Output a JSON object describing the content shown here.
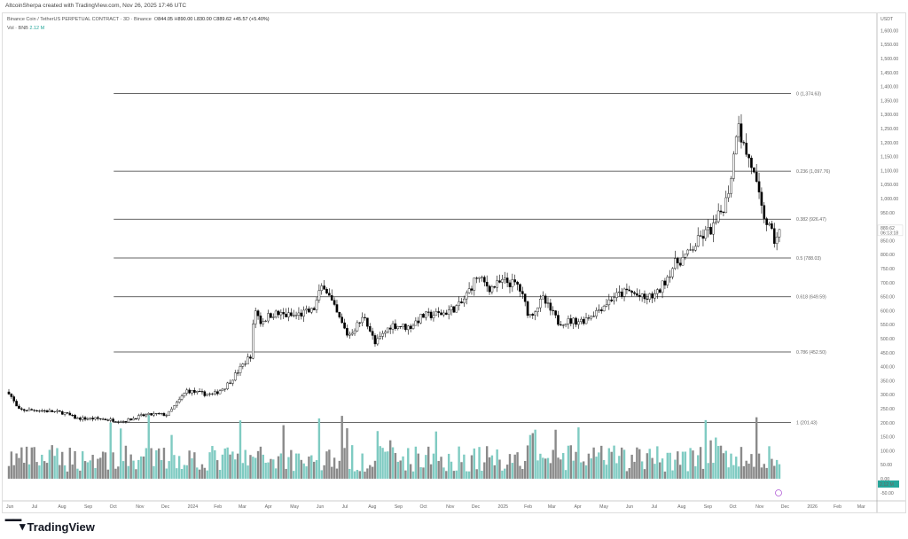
{
  "credit": "AltcoinSherpa created with TradingView.com, Nov 26, 2025 17:46 UTC",
  "legend": {
    "symbol": "Binance Coin / TetherUS PERPETUAL CONTRACT · 3D · Binance",
    "open_label": "O",
    "open": "844.05",
    "high_label": "H",
    "high": "890.00",
    "low_label": "L",
    "low": "830.00",
    "close_label": "C",
    "close": "889.62",
    "change": "+45.57 (+5.40%)",
    "vol_label": "Vol · BNB",
    "vol_value": "2.12 M"
  },
  "logo": "TradingView",
  "colors": {
    "up_body": "#ffffff",
    "down_body": "#000000",
    "vol_up": "#7fcbc2",
    "vol_down": "#8a8a8a",
    "accent": "#26a69a",
    "fib_line": "#333333"
  },
  "chart_data": {
    "type": "candlestick",
    "timeframe": "3D",
    "currency": "USDT",
    "ylim": [
      -50,
      1650
    ],
    "y_ticks": [
      "1,600.00",
      "1,550.00",
      "1,500.00",
      "1,450.00",
      "1,400.00",
      "1,350.00",
      "1,300.00",
      "1,250.00",
      "1,200.00",
      "1,150.00",
      "1,100.00",
      "1,050.00",
      "1,000.00",
      "950.00",
      "850.00",
      "800.00",
      "750.00",
      "700.00",
      "650.00",
      "600.00",
      "550.00",
      "500.00",
      "450.00",
      "400.00",
      "350.00",
      "300.00",
      "250.00",
      "200.00",
      "150.00",
      "100.00",
      "50.00",
      "0.00",
      "-50.00"
    ],
    "y_tick_values": [
      1600,
      1550,
      1500,
      1450,
      1400,
      1350,
      1300,
      1250,
      1200,
      1150,
      1100,
      1050,
      1000,
      950,
      850,
      800,
      750,
      700,
      650,
      600,
      550,
      500,
      450,
      400,
      350,
      300,
      250,
      200,
      150,
      100,
      50,
      0,
      -50
    ],
    "x_ticks": [
      {
        "label": "Jun",
        "date": "2023-06-01"
      },
      {
        "label": "Jul",
        "date": "2023-07-01"
      },
      {
        "label": "Aug",
        "date": "2023-08-01"
      },
      {
        "label": "Sep",
        "date": "2023-09-01"
      },
      {
        "label": "Oct",
        "date": "2023-10-01"
      },
      {
        "label": "Nov",
        "date": "2023-11-01"
      },
      {
        "label": "Dec",
        "date": "2023-12-01"
      },
      {
        "label": "2024",
        "date": "2024-01-01"
      },
      {
        "label": "Feb",
        "date": "2024-02-01"
      },
      {
        "label": "Mar",
        "date": "2024-03-01"
      },
      {
        "label": "Apr",
        "date": "2024-04-01"
      },
      {
        "label": "May",
        "date": "2024-05-01"
      },
      {
        "label": "Jun",
        "date": "2024-06-01"
      },
      {
        "label": "Jul",
        "date": "2024-07-01"
      },
      {
        "label": "Aug",
        "date": "2024-08-01"
      },
      {
        "label": "Sep",
        "date": "2024-09-01"
      },
      {
        "label": "Oct",
        "date": "2024-10-01"
      },
      {
        "label": "Nov",
        "date": "2024-11-01"
      },
      {
        "label": "Dec",
        "date": "2024-12-01"
      },
      {
        "label": "2025",
        "date": "2025-01-01"
      },
      {
        "label": "Feb",
        "date": "2025-02-01"
      },
      {
        "label": "Mar",
        "date": "2025-03-01"
      },
      {
        "label": "Apr",
        "date": "2025-04-01"
      },
      {
        "label": "May",
        "date": "2025-05-01"
      },
      {
        "label": "Jun",
        "date": "2025-06-01"
      },
      {
        "label": "Jul",
        "date": "2025-07-01"
      },
      {
        "label": "Aug",
        "date": "2025-08-01"
      },
      {
        "label": "Sep",
        "date": "2025-09-01"
      },
      {
        "label": "Oct",
        "date": "2025-10-01"
      },
      {
        "label": "Nov",
        "date": "2025-11-01"
      },
      {
        "label": "Dec",
        "date": "2025-12-01"
      },
      {
        "label": "2026",
        "date": "2026-01-01"
      },
      {
        "label": "Feb",
        "date": "2026-02-01"
      },
      {
        "label": "Mar",
        "date": "2026-03-01"
      }
    ],
    "last_price": "889.62",
    "countdown": "06:13:18",
    "fib_levels": [
      {
        "ratio": 0,
        "price": 1374.63,
        "label": "0 (1,374.63)"
      },
      {
        "ratio": 0.236,
        "price": 1097.76,
        "label": "0.236 (1,097.76)"
      },
      {
        "ratio": 0.382,
        "price": 926.47,
        "label": "0.382 (926.47)"
      },
      {
        "ratio": 0.5,
        "price": 788.03,
        "label": "0.5 (788.03)"
      },
      {
        "ratio": 0.618,
        "price": 649.59,
        "label": "0.618 (649.59)"
      },
      {
        "ratio": 0.786,
        "price": 452.5,
        "label": "0.786 (452.50)"
      },
      {
        "ratio": 1,
        "price": 201.43,
        "label": "1 (201.43)"
      }
    ],
    "fib_start_date": "2023-11-01",
    "price_path": [
      [
        "2023-06-01",
        310
      ],
      [
        "2023-06-12",
        245
      ],
      [
        "2023-07-05",
        245
      ],
      [
        "2023-08-05",
        235
      ],
      [
        "2023-08-20",
        215
      ],
      [
        "2023-09-15",
        214
      ],
      [
        "2023-10-15",
        205
      ],
      [
        "2023-11-05",
        225
      ],
      [
        "2023-11-20",
        230
      ],
      [
        "2023-12-05",
        228
      ],
      [
        "2023-12-15",
        265
      ],
      [
        "2023-12-28",
        315
      ],
      [
        "2024-01-12",
        305
      ],
      [
        "2024-01-28",
        300
      ],
      [
        "2024-02-12",
        330
      ],
      [
        "2024-02-28",
        390
      ],
      [
        "2024-03-12",
        440
      ],
      [
        "2024-03-17",
        610
      ],
      [
        "2024-03-24",
        560
      ],
      [
        "2024-04-07",
        590
      ],
      [
        "2024-05-01",
        580
      ],
      [
        "2024-05-25",
        600
      ],
      [
        "2024-06-06",
        700
      ],
      [
        "2024-06-20",
        600
      ],
      [
        "2024-07-05",
        510
      ],
      [
        "2024-07-25",
        580
      ],
      [
        "2024-08-06",
        480
      ],
      [
        "2024-08-25",
        550
      ],
      [
        "2024-09-15",
        540
      ],
      [
        "2024-10-01",
        580
      ],
      [
        "2024-10-25",
        590
      ],
      [
        "2024-11-15",
        620
      ],
      [
        "2024-12-04",
        720
      ],
      [
        "2024-12-20",
        680
      ],
      [
        "2025-01-05",
        705
      ],
      [
        "2025-01-22",
        690
      ],
      [
        "2025-02-04",
        580
      ],
      [
        "2025-02-20",
        640
      ],
      [
        "2025-03-10",
        560
      ],
      [
        "2025-04-08",
        565
      ],
      [
        "2025-04-25",
        600
      ],
      [
        "2025-05-15",
        650
      ],
      [
        "2025-06-01",
        670
      ],
      [
        "2025-06-20",
        640
      ],
      [
        "2025-07-05",
        660
      ],
      [
        "2025-07-25",
        765
      ],
      [
        "2025-08-10",
        800
      ],
      [
        "2025-08-25",
        860
      ],
      [
        "2025-09-10",
        900
      ],
      [
        "2025-09-25",
        1000
      ],
      [
        "2025-10-02",
        1120
      ],
      [
        "2025-10-08",
        1310
      ],
      [
        "2025-10-13",
        1200
      ],
      [
        "2025-10-24",
        1120
      ],
      [
        "2025-11-05",
        960
      ],
      [
        "2025-11-20",
        850
      ],
      [
        "2025-11-26",
        889.62
      ]
    ]
  }
}
